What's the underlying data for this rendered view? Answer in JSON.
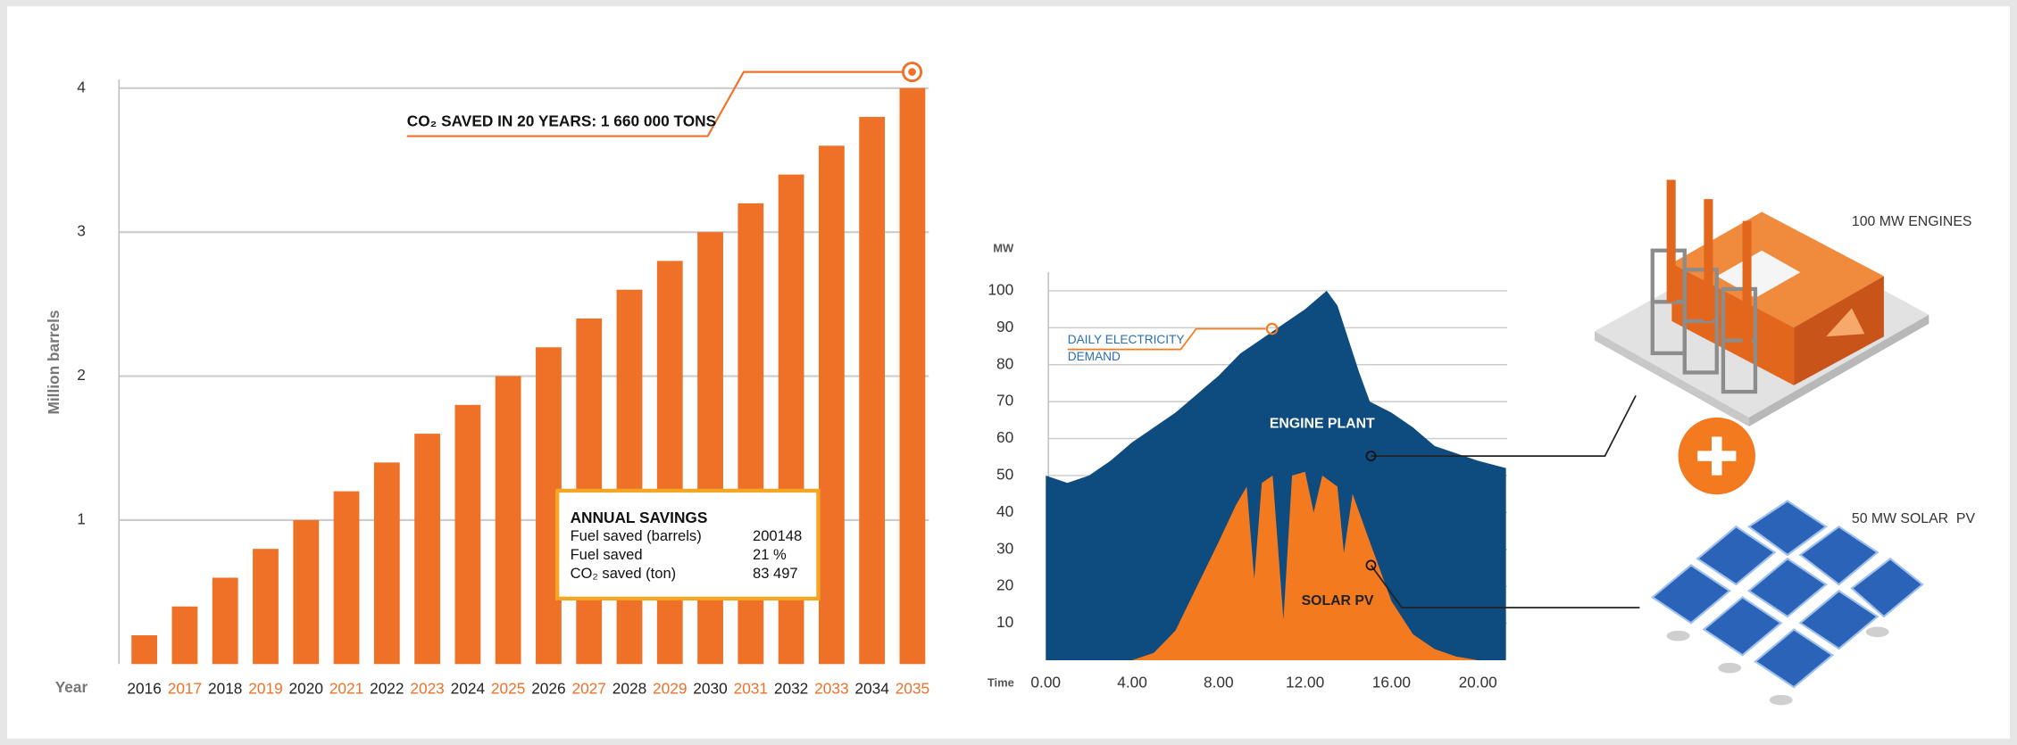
{
  "chart_data": [
    {
      "type": "bar",
      "ylabel": "Million barrels",
      "xlabel": "Year",
      "categories": [
        "2016",
        "2017",
        "2018",
        "2019",
        "2020",
        "2021",
        "2022",
        "2023",
        "2024",
        "2025",
        "2026",
        "2027",
        "2028",
        "2029",
        "2030",
        "2031",
        "2032",
        "2033",
        "2034",
        "2035"
      ],
      "values": [
        0.2,
        0.4,
        0.6,
        0.8,
        1.0,
        1.2,
        1.4,
        1.6,
        1.8,
        2.0,
        2.2,
        2.4,
        2.6,
        2.8,
        3.0,
        3.2,
        3.4,
        3.6,
        3.8,
        4.0
      ],
      "color": "#ef7128",
      "category_label_colors": [
        "#222222",
        "#ef7128"
      ],
      "ylim": [
        0,
        4.05
      ],
      "yticks": [
        1,
        2,
        3,
        4
      ],
      "grid": true,
      "annotation": "CO₂ SAVED IN 20 YEARS: 1 660 000 TONS",
      "table": {
        "title": "ANNUAL SAVINGS",
        "rows": [
          [
            "Fuel saved (barrels)",
            "200148"
          ],
          [
            "Fuel saved",
            "21 %"
          ],
          [
            "CO₂ saved (ton)",
            "83 497"
          ]
        ]
      }
    },
    {
      "type": "area",
      "ylabel": "MW",
      "xlabel": "Time",
      "series": [
        {
          "name": "ENGINE PLANT",
          "color": "#0e4c7f",
          "x": [
            0,
            1,
            2,
            3,
            4,
            5,
            6,
            7,
            8,
            9,
            10,
            11,
            12,
            13,
            13.5,
            14,
            14.5,
            15,
            16,
            17,
            18,
            19,
            20,
            21.3
          ],
          "values": [
            50,
            48,
            50,
            54,
            59,
            63,
            67,
            72,
            77,
            83,
            87,
            91,
            95,
            100,
            96,
            87,
            78,
            70,
            67,
            63,
            58,
            56,
            54,
            52
          ]
        },
        {
          "name": "SOLAR PV",
          "color": "#f47a20",
          "x": [
            4,
            5,
            6,
            7,
            8,
            8.8,
            9.3,
            9.65,
            10,
            10.5,
            11,
            11.4,
            12,
            12.4,
            12.8,
            13.5,
            13.8,
            14.2,
            15,
            16,
            17,
            18,
            19,
            20
          ],
          "values": [
            0,
            2,
            8,
            20,
            32,
            42,
            47,
            22,
            48,
            50,
            11,
            50,
            51,
            40,
            50,
            47,
            29,
            45,
            32,
            16,
            7,
            3,
            1,
            0
          ]
        }
      ],
      "xlim": [
        0,
        21.3
      ],
      "ylim": [
        0,
        105
      ],
      "xticks": [
        {
          "value": 0,
          "label": "0.00"
        },
        {
          "value": 4,
          "label": "4.00"
        },
        {
          "value": 8,
          "label": "8.00"
        },
        {
          "value": 12,
          "label": "12.00"
        },
        {
          "value": 16,
          "label": "16.00"
        },
        {
          "value": 20,
          "label": "20.00"
        }
      ],
      "yticks": [
        10,
        20,
        30,
        40,
        50,
        60,
        70,
        80,
        90,
        100
      ],
      "grid": true,
      "annotation": [
        "DAILY ELECTRICITY",
        "DEMAND"
      ]
    }
  ],
  "illustration": {
    "engines_label": "100 MW ENGINES",
    "solar_label": "50 MW SOLAR  PV"
  }
}
